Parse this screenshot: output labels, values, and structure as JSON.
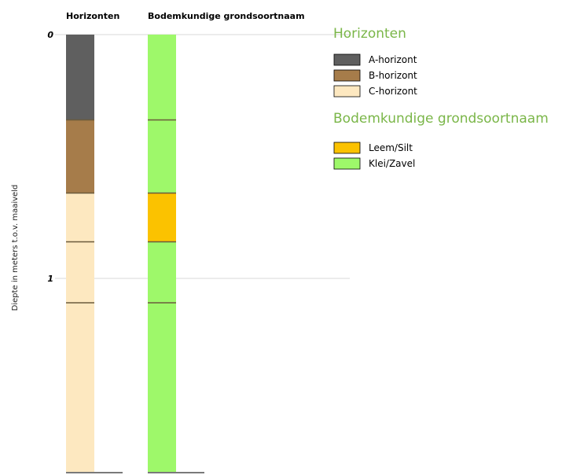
{
  "chart_data": {
    "type": "bar",
    "ylabel": "Diepte in meters t.o.v. maaiveld",
    "ylim": [
      0,
      1.8
    ],
    "yticks": [
      0,
      1
    ],
    "grid": true,
    "columns": [
      {
        "title": "Horizonten",
        "layers": [
          {
            "top": 0.0,
            "bottom": 0.35,
            "class": "A-horizont"
          },
          {
            "top": 0.35,
            "bottom": 0.65,
            "class": "B-horizont"
          },
          {
            "top": 0.65,
            "bottom": 0.85,
            "class": "C-horizont"
          },
          {
            "top": 0.85,
            "bottom": 1.1,
            "class": "C-horizont"
          },
          {
            "top": 1.1,
            "bottom": 1.8,
            "class": "C-horizont"
          }
        ]
      },
      {
        "title": "Bodemkundige grondsoortnaam",
        "layers": [
          {
            "top": 0.0,
            "bottom": 0.35,
            "class": "Klei/Zavel"
          },
          {
            "top": 0.35,
            "bottom": 0.65,
            "class": "Klei/Zavel"
          },
          {
            "top": 0.65,
            "bottom": 0.85,
            "class": "Leem/Silt"
          },
          {
            "top": 0.85,
            "bottom": 1.1,
            "class": "Klei/Zavel"
          },
          {
            "top": 1.1,
            "bottom": 1.8,
            "class": "Klei/Zavel"
          }
        ]
      }
    ],
    "legend": [
      {
        "title": "Horizonten",
        "entries": [
          {
            "label": "A-horizont",
            "color": "#5f5f5f"
          },
          {
            "label": "B-horizont",
            "color": "#a67c4a"
          },
          {
            "label": "C-horizont",
            "color": "#fde8c0"
          }
        ]
      },
      {
        "title": "Bodemkundige grondsoortnaam",
        "entries": [
          {
            "label": "Leem/Silt",
            "color": "#fbc200"
          },
          {
            "label": "Klei/Zavel",
            "color": "#9ef86a"
          }
        ]
      }
    ]
  }
}
